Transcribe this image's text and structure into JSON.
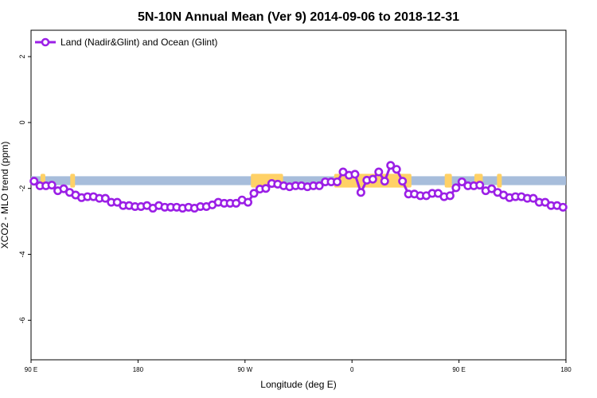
{
  "colors": {
    "series": "#9b1fe6",
    "marker_fill": "#ffffff",
    "ocean_band": "#a7bddb",
    "land": "#ffd166"
  },
  "chart_data": {
    "type": "line",
    "title": "5N-10N Annual Mean (Ver 9)   2014-09-06 to 2018-12-31",
    "xlabel": "Longitude (deg E)",
    "ylabel": "XCO2 - MLO trend (ppm)",
    "xlim": [
      0,
      450
    ],
    "ylim": [
      -7.2,
      2.8
    ],
    "x_ticks": [
      {
        "value": 0,
        "label": "90 E"
      },
      {
        "value": 90,
        "label": "180"
      },
      {
        "value": 180,
        "label": "90 W"
      },
      {
        "value": 270,
        "label": "0"
      },
      {
        "value": 360,
        "label": "90 E"
      },
      {
        "value": 450,
        "label": "180"
      }
    ],
    "y_ticks": [
      {
        "value": 2,
        "label": "2"
      },
      {
        "value": 0,
        "label": "0"
      },
      {
        "value": -2,
        "label": "-2"
      },
      {
        "value": -4,
        "label": "-4"
      },
      {
        "value": -6,
        "label": "-6"
      }
    ],
    "grid": false,
    "legend_position": "top-left",
    "background_band": {
      "ymin": -1.9,
      "ymax": -1.63
    },
    "land_regions": [
      [
        8,
        12
      ],
      [
        33,
        37
      ],
      [
        185,
        212
      ],
      [
        255,
        320
      ],
      [
        348,
        354
      ],
      [
        373,
        380
      ],
      [
        392,
        396
      ]
    ],
    "series": [
      {
        "name": "Land (Nadir&Glint) and Ocean (Glint)",
        "x": [
          2.5,
          7.5,
          12.5,
          17.5,
          22.5,
          27.5,
          32.5,
          37.5,
          42.5,
          47.5,
          52.5,
          57.5,
          62.5,
          67.5,
          72.5,
          77.5,
          82.5,
          87.5,
          92.5,
          97.5,
          102.5,
          107.5,
          112.5,
          117.5,
          122.5,
          127.5,
          132.5,
          137.5,
          142.5,
          147.5,
          152.5,
          157.5,
          162.5,
          167.5,
          172.5,
          177.5,
          182.5,
          187.5,
          192.5,
          197.5,
          202.5,
          207.5,
          212.5,
          217.5,
          222.5,
          227.5,
          232.5,
          237.5,
          242.5,
          247.5,
          252.5,
          257.5,
          262.5,
          267.5,
          272.5,
          277.5,
          282.5,
          287.5,
          292.5,
          297.5,
          302.5,
          307.5,
          312.5,
          317.5,
          322.5,
          327.5,
          332.5,
          337.5,
          342.5,
          347.5,
          352.5,
          357.5,
          362.5,
          367.5,
          372.5,
          377.5,
          382.5,
          387.5,
          392.5,
          397.5,
          402.5,
          407.5,
          412.5,
          417.5,
          422.5,
          427.5,
          432.5,
          437.5,
          442.5,
          447.5
        ],
        "y": [
          -1.78,
          -1.92,
          -1.92,
          -1.9,
          -2.07,
          -2.01,
          -2.12,
          -2.2,
          -2.28,
          -2.25,
          -2.25,
          -2.3,
          -2.3,
          -2.42,
          -2.42,
          -2.52,
          -2.52,
          -2.55,
          -2.55,
          -2.52,
          -2.6,
          -2.52,
          -2.57,
          -2.57,
          -2.57,
          -2.6,
          -2.57,
          -2.6,
          -2.55,
          -2.55,
          -2.5,
          -2.42,
          -2.45,
          -2.45,
          -2.45,
          -2.35,
          -2.42,
          -2.15,
          -2.02,
          -2.0,
          -1.85,
          -1.87,
          -1.92,
          -1.95,
          -1.92,
          -1.92,
          -1.95,
          -1.92,
          -1.92,
          -1.8,
          -1.8,
          -1.8,
          -1.5,
          -1.6,
          -1.57,
          -2.12,
          -1.75,
          -1.72,
          -1.5,
          -1.78,
          -1.3,
          -1.42,
          -1.78,
          -2.17,
          -2.17,
          -2.22,
          -2.22,
          -2.15,
          -2.15,
          -2.25,
          -2.22,
          -1.98,
          -1.8,
          -1.92,
          -1.92,
          -1.9,
          -2.07,
          -2.01,
          -2.12,
          -2.2,
          -2.28,
          -2.25,
          -2.25,
          -2.3,
          -2.3,
          -2.42,
          -2.42,
          -2.52,
          -2.52,
          -2.57
        ]
      }
    ]
  }
}
